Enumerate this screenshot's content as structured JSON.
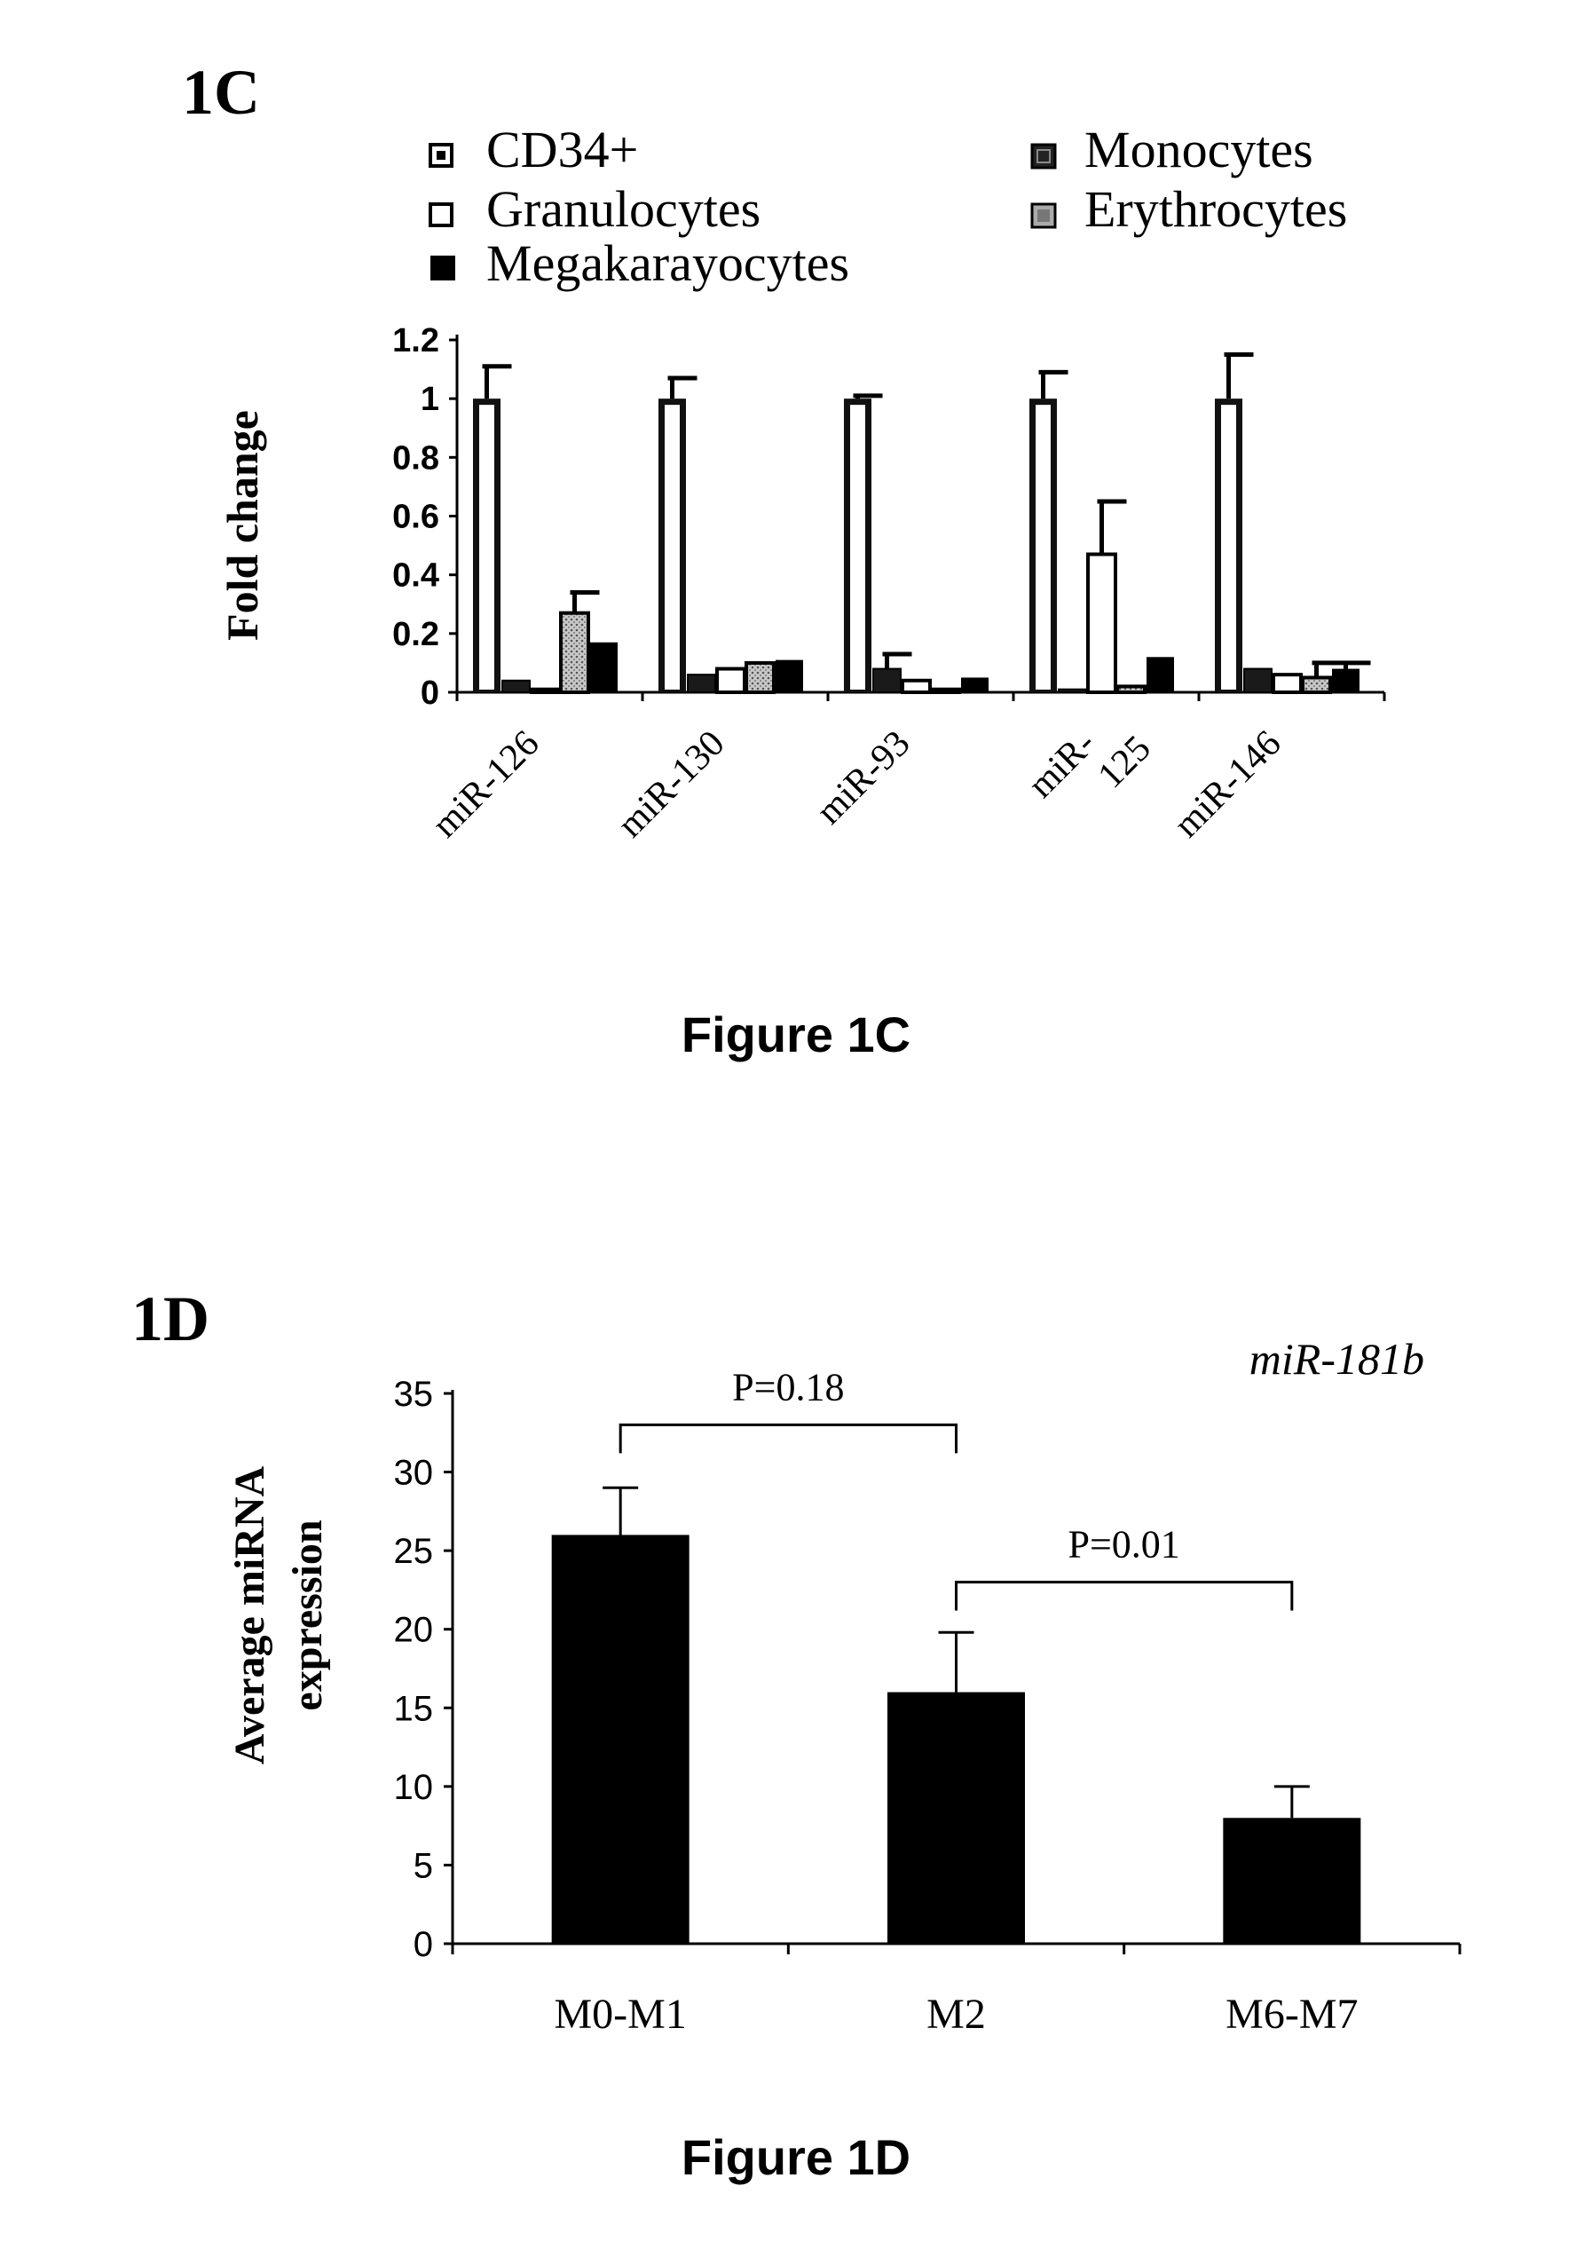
{
  "chart_data": [
    {
      "type": "bar",
      "panel_label": "1C",
      "caption": "Figure 1C",
      "ylabel": "Fold change",
      "xlabel": "",
      "ylim": [
        0,
        1.2
      ],
      "yticks": [
        0,
        0.2,
        0.4,
        0.6,
        0.8,
        1,
        1.2
      ],
      "ytick_labels": [
        "0",
        "0.2",
        "0.4",
        "0.6",
        "0.8",
        "1",
        "1.2"
      ],
      "categories": [
        "miR-126",
        "miR-130",
        "miR-93",
        "miR-125",
        "miR-146"
      ],
      "category_labels": [
        [
          "miR-126"
        ],
        [
          "miR-130"
        ],
        [
          "miR-93"
        ],
        [
          "miR-",
          "125"
        ],
        [
          "miR-146"
        ]
      ],
      "legend_position": "top",
      "grid": false,
      "series": [
        {
          "name": "CD34+",
          "values": [
            1.0,
            1.0,
            1.0,
            1.0,
            1.0
          ],
          "errors": [
            0.11,
            0.07,
            0.01,
            0.09,
            0.15
          ],
          "style": "outline-dark"
        },
        {
          "name": "Monocytes",
          "values": [
            0.04,
            0.06,
            0.08,
            0.01,
            0.08
          ],
          "errors": [
            0.0,
            0.0,
            0.05,
            0.0,
            0.0
          ],
          "style": "dark-bordered"
        },
        {
          "name": "Granulocytes",
          "values": [
            0.01,
            0.08,
            0.04,
            0.47,
            0.06
          ],
          "errors": [
            0.0,
            0.0,
            0.0,
            0.18,
            0.0
          ],
          "style": "white"
        },
        {
          "name": "Erythrocytes",
          "values": [
            0.27,
            0.1,
            0.01,
            0.02,
            0.05
          ],
          "errors": [
            0.07,
            0.0,
            0.0,
            0.0,
            0.05
          ],
          "style": "dotted"
        },
        {
          "name": "Megakarayocytes",
          "values": [
            0.17,
            0.11,
            0.05,
            0.12,
            0.08
          ],
          "errors": [
            0.0,
            0.0,
            0.0,
            0.0,
            0.02
          ],
          "style": "black"
        }
      ]
    },
    {
      "type": "bar",
      "panel_label": "1D",
      "caption": "Figure 1D",
      "title": "miR-181b",
      "ylabel": [
        "Average miRNA",
        "expression"
      ],
      "xlabel": "",
      "ylim": [
        0,
        35
      ],
      "yticks": [
        0,
        5,
        10,
        15,
        20,
        25,
        30,
        35
      ],
      "ytick_labels": [
        "0",
        "5",
        "10",
        "15",
        "20",
        "25",
        "30",
        "35"
      ],
      "categories": [
        "M0-M1",
        "M2",
        "M6-M7"
      ],
      "values": [
        26,
        16,
        8
      ],
      "errors": [
        3,
        3.8,
        2
      ],
      "annotations": [
        {
          "text": "P=0.18",
          "from": 0,
          "to": 1,
          "level": 33
        },
        {
          "text": "P=0.01",
          "from": 1,
          "to": 2,
          "level": 23
        }
      ],
      "grid": false
    }
  ]
}
